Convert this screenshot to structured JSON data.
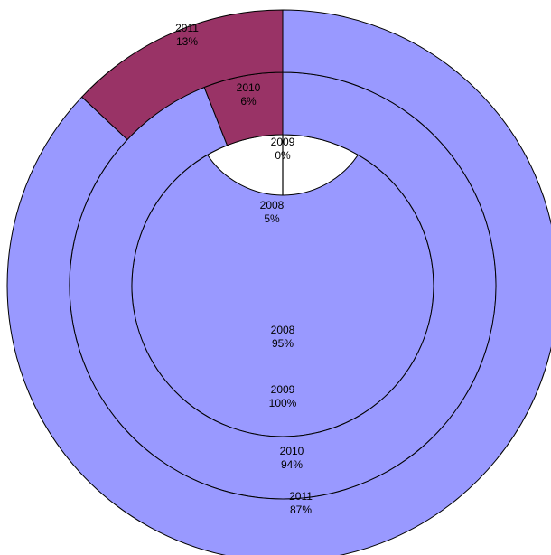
{
  "chart_data": {
    "type": "doughnut",
    "title": "",
    "colors": {
      "main": "#9999ff",
      "minor": "#993366",
      "outline": "#000000",
      "background": "#ffffff"
    },
    "rings": [
      {
        "name": "2008",
        "slices": [
          {
            "key": "minor",
            "value": 5,
            "label_year": "2008",
            "label_pct": "5%"
          },
          {
            "key": "main",
            "value": 95,
            "label_year": "2008",
            "label_pct": "95%"
          }
        ]
      },
      {
        "name": "2009",
        "slices": [
          {
            "key": "minor",
            "value": 0,
            "label_year": "2009",
            "label_pct": "0%"
          },
          {
            "key": "main",
            "value": 100,
            "label_year": "2009",
            "label_pct": "100%"
          }
        ]
      },
      {
        "name": "2010",
        "slices": [
          {
            "key": "minor",
            "value": 6,
            "label_year": "2010",
            "label_pct": "6%"
          },
          {
            "key": "main",
            "value": 94,
            "label_year": "2010",
            "label_pct": "94%"
          }
        ]
      },
      {
        "name": "2011",
        "slices": [
          {
            "key": "minor",
            "value": 13,
            "label_year": "2011",
            "label_pct": "13%"
          },
          {
            "key": "main",
            "value": 87,
            "label_year": "2011",
            "label_pct": "87%"
          }
        ]
      }
    ]
  }
}
